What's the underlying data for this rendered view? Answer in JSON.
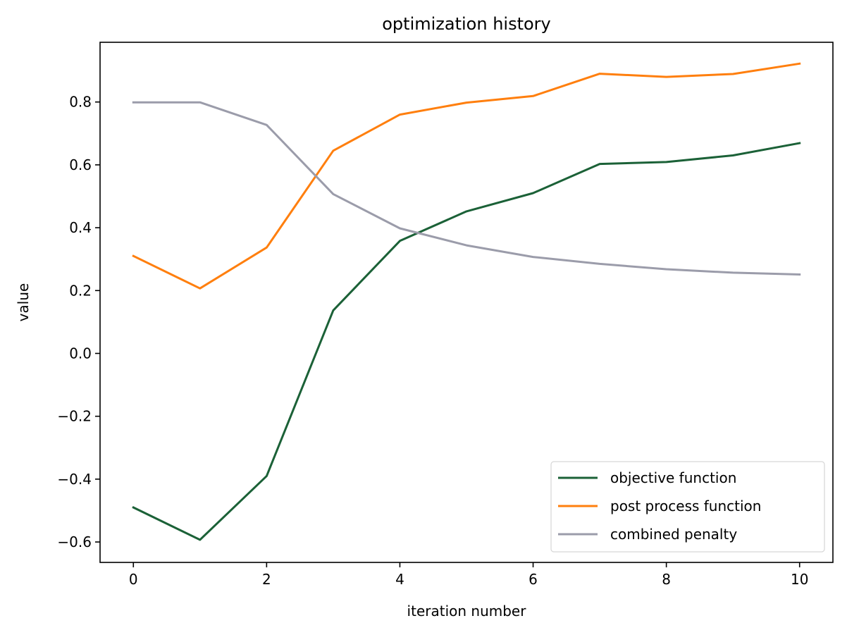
{
  "chart_data": {
    "type": "line",
    "title": "optimization history",
    "xlabel": "iteration number",
    "ylabel": "value",
    "x": [
      0,
      1,
      2,
      3,
      4,
      5,
      6,
      7,
      8,
      9,
      10
    ],
    "xlim": [
      -0.5,
      10.5
    ],
    "ylim": [
      -0.665,
      0.99
    ],
    "xticks": [
      0,
      2,
      4,
      6,
      8,
      10
    ],
    "xtick_labels": [
      "0",
      "2",
      "4",
      "6",
      "8",
      "10"
    ],
    "yticks": [
      -0.6,
      -0.4,
      -0.2,
      0.0,
      0.2,
      0.4,
      0.6,
      0.8
    ],
    "ytick_labels": [
      "−0.6",
      "−0.4",
      "−0.2",
      "0.0",
      "0.2",
      "0.4",
      "0.6",
      "0.8"
    ],
    "grid": false,
    "legend_position": "lower-right",
    "series": [
      {
        "name": "objective function",
        "color": "#1b6137",
        "values": [
          -0.49,
          -0.593,
          -0.39,
          0.137,
          0.358,
          0.452,
          0.51,
          0.603,
          0.609,
          0.63,
          0.669
        ]
      },
      {
        "name": "post process function",
        "color": "#ff7f0e",
        "values": [
          0.31,
          0.207,
          0.337,
          0.645,
          0.76,
          0.798,
          0.819,
          0.89,
          0.88,
          0.889,
          0.922
        ]
      },
      {
        "name": "combined penalty",
        "color": "#9b9caa",
        "values": [
          0.799,
          0.799,
          0.727,
          0.507,
          0.398,
          0.344,
          0.307,
          0.285,
          0.268,
          0.257,
          0.251
        ]
      }
    ]
  }
}
